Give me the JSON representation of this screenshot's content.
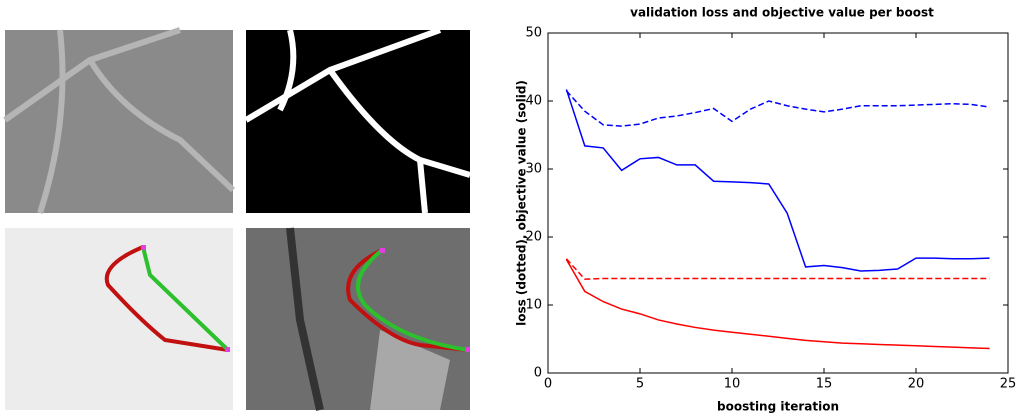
{
  "chart_data": {
    "type": "line",
    "title": "validation loss and objective value per boost",
    "x_label": "boosting iteration",
    "y_label": "loss (dotted), objective value (solid)",
    "x": [
      1,
      2,
      3,
      4,
      5,
      6,
      7,
      8,
      9,
      10,
      11,
      12,
      13,
      14,
      15,
      16,
      17,
      18,
      19,
      20,
      21,
      22,
      23,
      24
    ],
    "series": [
      {
        "color": "#0000ff",
        "linestyle": "dashed",
        "values": [
          41.5,
          38.5,
          36.5,
          36.3,
          36.6,
          37.5,
          37.8,
          38.3,
          38.9,
          37,
          38.8,
          40,
          39.3,
          38.8,
          38.4,
          38.8,
          39.3,
          39.3,
          39.3,
          39.4,
          39.5,
          39.6,
          39.5,
          39.1
        ]
      },
      {
        "color": "#0000ff",
        "linestyle": "solid",
        "values": [
          41.7,
          33.4,
          33.1,
          29.8,
          31.5,
          31.7,
          30.6,
          30.6,
          28.2,
          28.1,
          28,
          27.8,
          23.5,
          15.6,
          15.8,
          15.5,
          15,
          15.1,
          15.3,
          16.9,
          16.9,
          16.8,
          16.8,
          16.9
        ]
      },
      {
        "color": "#ff0000",
        "linestyle": "dashed",
        "values": [
          16.8,
          13.8,
          13.9,
          13.9,
          13.9,
          13.9,
          13.9,
          13.9,
          13.9,
          13.9,
          13.9,
          13.9,
          13.9,
          13.9,
          13.9,
          13.9,
          13.9,
          13.9,
          13.9,
          13.9,
          13.9,
          13.9,
          13.9,
          13.9
        ]
      },
      {
        "color": "#ff0000",
        "linestyle": "solid",
        "values": [
          16.7,
          12,
          10.5,
          9.4,
          8.7,
          7.8,
          7.2,
          6.7,
          6.3,
          6,
          5.7,
          5.4,
          5.1,
          4.8,
          4.6,
          4.4,
          4.3,
          4.2,
          4.1,
          4,
          3.9,
          3.8,
          3.7,
          3.6
        ]
      }
    ],
    "xlim": [
      0,
      25
    ],
    "xticks": [
      0,
      5,
      10,
      15,
      20,
      25
    ],
    "ylim": [
      0,
      50
    ],
    "yticks": [
      0,
      10,
      20,
      30,
      40,
      50
    ],
    "grid": false
  }
}
